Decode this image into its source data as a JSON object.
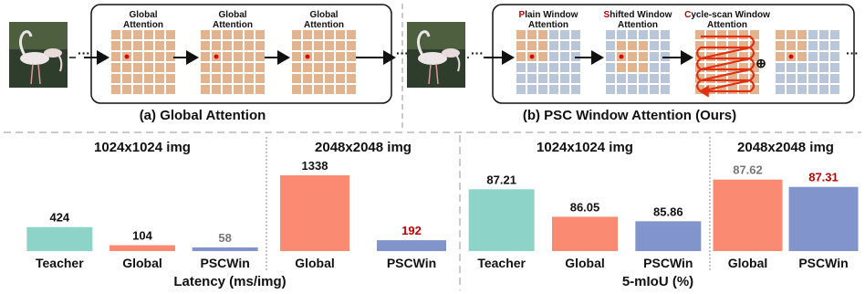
{
  "panel_a": {
    "caption": "(a) Global Attention",
    "stage_labels": [
      [
        "Global",
        "Attention"
      ],
      [
        "Global",
        "Attention"
      ],
      [
        "Global",
        "Attention"
      ]
    ],
    "ellipsis": "···"
  },
  "panel_b": {
    "caption": "(b) PSC Window Attention (Ours)",
    "stage_labels": [
      {
        "accent": "P",
        "rest": "lain Window",
        "line2": "Attention"
      },
      {
        "accent": "S",
        "rest": "hifted Window",
        "line2": "Attention"
      },
      {
        "accent": "C",
        "rest": "ycle-scan Window",
        "line2": "Attention"
      }
    ],
    "plus": "⊕",
    "ellipsis": "···"
  },
  "colors": {
    "accent_red": "#c00000",
    "teacher": "#8ed3c7",
    "global": "#fb8a72",
    "pscwin": "#8194cc",
    "grid_orange": "#e2b38f",
    "grid_blue": "#b9c6d8"
  },
  "chart_data": [
    {
      "type": "bar",
      "title": "1024x1024 img",
      "categories": [
        "Teacher",
        "Global",
        "PSCWin"
      ],
      "values": [
        424,
        104,
        58
      ],
      "value_labels": [
        "424",
        "104",
        "58"
      ],
      "ylim": [
        0,
        1338
      ],
      "group_caption": "Latency (ms/img)"
    },
    {
      "type": "bar",
      "title": "2048x2048 img",
      "categories": [
        "Global",
        "PSCWin"
      ],
      "values": [
        1338,
        192
      ],
      "value_labels": [
        "1338",
        "192"
      ],
      "ylim": [
        0,
        1338
      ],
      "group_caption": "Latency (ms/img)"
    },
    {
      "type": "bar",
      "title": "1024x1024 img",
      "categories": [
        "Teacher",
        "Global",
        "PSCWin"
      ],
      "values": [
        87.21,
        86.05,
        85.86
      ],
      "value_labels": [
        "87.21",
        "86.05",
        "85.86"
      ],
      "ylim": [
        84.6,
        87.8
      ],
      "group_caption": "5-mIoU (%)"
    },
    {
      "type": "bar",
      "title": "2048x2048 img",
      "categories": [
        "Global",
        "PSCWin"
      ],
      "values": [
        87.62,
        87.31
      ],
      "value_labels": [
        "87.62",
        "87.31"
      ],
      "ylim": [
        84.6,
        87.8
      ],
      "group_caption": "5-mIoU (%)"
    }
  ],
  "captions": {
    "latency": "Latency (ms/img)",
    "miou": "5-mIoU (%)"
  }
}
